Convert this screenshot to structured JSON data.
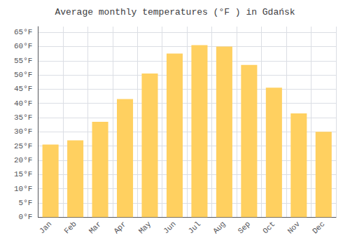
{
  "chart_data": {
    "type": "bar",
    "title": "Average monthly temperatures (°F ) in Gdańsk",
    "categories": [
      "Jan",
      "Feb",
      "Mar",
      "Apr",
      "May",
      "Jun",
      "Jul",
      "Aug",
      "Sep",
      "Oct",
      "Nov",
      "Dec"
    ],
    "values": [
      25.5,
      27.0,
      33.5,
      41.5,
      50.5,
      57.5,
      60.5,
      60.0,
      53.5,
      45.5,
      36.5,
      30.0
    ],
    "color": "#FFD060",
    "ylim": [
      0,
      67
    ],
    "yticks": [
      {
        "value": 0,
        "label": "0°F"
      },
      {
        "value": 5,
        "label": "5°F"
      },
      {
        "value": 10,
        "label": "10°F"
      },
      {
        "value": 15,
        "label": "15°F"
      },
      {
        "value": 20,
        "label": "20°F"
      },
      {
        "value": 25,
        "label": "25°F"
      },
      {
        "value": 30,
        "label": "30°F"
      },
      {
        "value": 35,
        "label": "35°F"
      },
      {
        "value": 40,
        "label": "40°F"
      },
      {
        "value": 45,
        "label": "45°F"
      },
      {
        "value": 50,
        "label": "50°F"
      },
      {
        "value": 55,
        "label": "55°F"
      },
      {
        "value": 60,
        "label": "60°F"
      },
      {
        "value": 65,
        "label": "65°F"
      }
    ],
    "grid": true
  }
}
